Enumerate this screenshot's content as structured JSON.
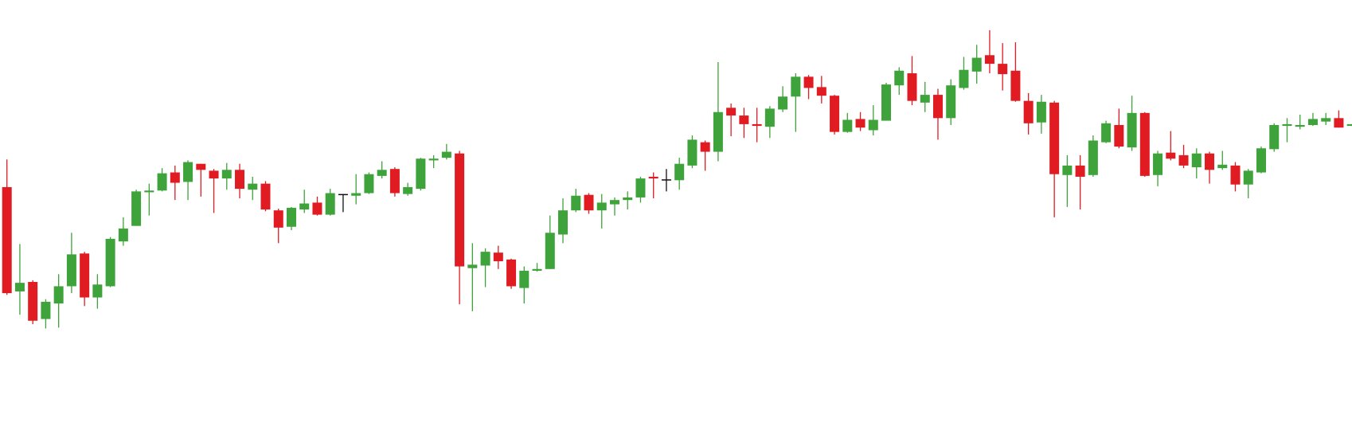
{
  "chart_data": {
    "type": "candlestick",
    "open": [
      291,
      170,
      181,
      138,
      156,
      176,
      214,
      163,
      176,
      228,
      246,
      285,
      287,
      308,
      297,
      318,
      310,
      301,
      311,
      288,
      295,
      264,
      245,
      265,
      273,
      259,
      283,
      281,
      284,
      304,
      312,
      283,
      289,
      322,
      325,
      330,
      197,
      200,
      215,
      207,
      174,
      194,
      196,
      236,
      264,
      282,
      264,
      271,
      276,
      279,
      303,
      300,
      299,
      316,
      343,
      332,
      383,
      374,
      364,
      361,
      381,
      396,
      419,
      407,
      397,
      355,
      370,
      357,
      368,
      409,
      423,
      389,
      398,
      371,
      406,
      425,
      444,
      434,
      426,
      391,
      366,
      389,
      305,
      316,
      305,
      343,
      363,
      337,
      377,
      305,
      331,
      328,
      314,
      330,
      313,
      316,
      294,
      308,
      335,
      362,
      361,
      363,
      367,
      371,
      362
    ],
    "high": [
      323,
      225,
      183,
      161,
      190,
      238,
      216,
      190,
      233,
      256,
      288,
      295,
      313,
      316,
      322,
      318,
      312,
      319,
      318,
      303,
      298,
      266,
      268,
      288,
      280,
      289,
      283,
      306,
      308,
      321,
      314,
      296,
      325,
      328,
      341,
      333,
      226,
      220,
      223,
      208,
      199,
      203,
      258,
      278,
      289,
      284,
      283,
      279,
      286,
      303,
      308,
      312,
      325,
      351,
      345,
      436,
      388,
      383,
      383,
      385,
      408,
      423,
      421,
      420,
      398,
      377,
      378,
      386,
      412,
      430,
      443,
      413,
      405,
      416,
      442,
      456,
      473,
      458,
      459,
      400,
      398,
      391,
      328,
      328,
      351,
      368,
      382,
      397,
      378,
      333,
      356,
      340,
      336,
      332,
      333,
      320,
      312,
      338,
      365,
      371,
      375,
      377,
      377,
      380,
      364
    ],
    "low": [
      166,
      143,
      132,
      127,
      128,
      168,
      153,
      150,
      175,
      223,
      246,
      258,
      286,
      276,
      276,
      280,
      261,
      288,
      278,
      276,
      263,
      226,
      241,
      261,
      258,
      258,
      262,
      271,
      283,
      301,
      280,
      281,
      287,
      313,
      323,
      155,
      147,
      175,
      196,
      173,
      156,
      193,
      196,
      226,
      262,
      260,
      243,
      258,
      265,
      273,
      278,
      286,
      288,
      313,
      310,
      321,
      350,
      348,
      343,
      348,
      378,
      355,
      393,
      388,
      352,
      354,
      356,
      351,
      368,
      398,
      386,
      378,
      346,
      363,
      404,
      411,
      423,
      403,
      390,
      352,
      353,
      256,
      268,
      265,
      303,
      342,
      336,
      333,
      303,
      292,
      322,
      313,
      301,
      295,
      311,
      286,
      278,
      307,
      332,
      343,
      358,
      362,
      363,
      360,
      362
    ],
    "close": [
      168,
      180,
      136,
      158,
      176,
      213,
      163,
      178,
      231,
      243,
      286,
      287,
      307,
      296,
      320,
      311,
      301,
      311,
      289,
      295,
      265,
      244,
      267,
      272,
      259,
      284,
      283,
      284,
      306,
      311,
      284,
      291,
      324,
      324,
      332,
      199,
      201,
      216,
      205,
      176,
      194,
      196,
      238,
      264,
      281,
      264,
      273,
      276,
      279,
      301,
      301,
      300,
      318,
      346,
      332,
      378,
      374,
      364,
      362,
      382,
      396,
      419,
      406,
      397,
      355,
      369,
      360,
      369,
      410,
      426,
      391,
      398,
      371,
      409,
      427,
      441,
      434,
      422,
      391,
      365,
      390,
      306,
      316,
      303,
      345,
      365,
      338,
      377,
      304,
      330,
      324,
      316,
      330,
      311,
      317,
      294,
      310,
      336,
      363,
      364,
      363,
      370,
      371,
      360,
      364
    ],
    "up_color": "#3da33a",
    "down_color": "#e01b22",
    "flat_color": "#111111",
    "ylim": [
      0,
      508
    ]
  }
}
